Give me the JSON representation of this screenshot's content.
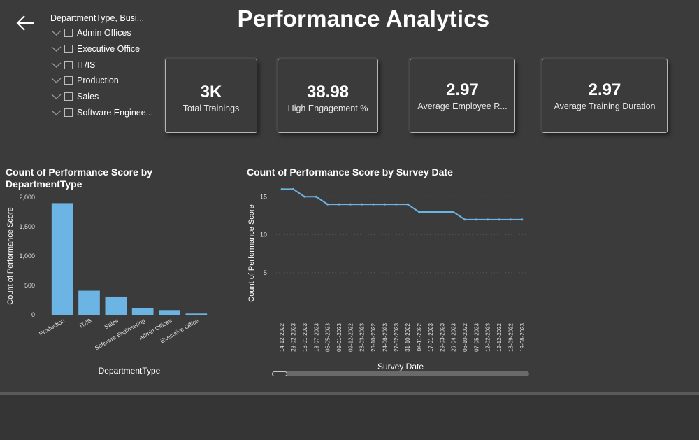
{
  "page": {
    "title": "Performance Analytics"
  },
  "slicer": {
    "title": "DepartmentType, Busi...",
    "items": [
      {
        "label": "Admin Offices"
      },
      {
        "label": "Executive Office"
      },
      {
        "label": "IT/IS"
      },
      {
        "label": "Production"
      },
      {
        "label": "Sales"
      },
      {
        "label": "Software Enginee..."
      }
    ]
  },
  "kpis": [
    {
      "value": "3K",
      "label": "Total Trainings"
    },
    {
      "value": "38.98",
      "label": "High Engagement %"
    },
    {
      "value": "2.97",
      "label": "Average Employee R..."
    },
    {
      "value": "2.97",
      "label": "Average Training Duration"
    }
  ],
  "chart_data": [
    {
      "type": "bar",
      "title": "Count of Performance Score by DepartmentType",
      "xlabel": "DepartmentType",
      "ylabel": "Count of Performance Score",
      "categories": [
        "Production",
        "IT/IS",
        "Sales",
        "Software Engineering",
        "Admin Offices",
        "Executive Office"
      ],
      "values": [
        1900,
        410,
        310,
        110,
        80,
        20
      ],
      "ylim": [
        0,
        2000
      ],
      "yticks": [
        0,
        500,
        1000,
        1500,
        2000
      ],
      "ytick_labels": [
        "0",
        "500",
        "1,000",
        "1,500",
        "2,000"
      ],
      "color": "#6cb4e4",
      "grid": false
    },
    {
      "type": "line",
      "title": "Count of Performance Score by Survey Date",
      "xlabel": "Survey Date",
      "ylabel": "Count of Performance Score",
      "x": [
        "14-12-2022",
        "23-02-2023",
        "13-01-2023",
        "13-07-2023",
        "05-05-2023",
        "09-01-2023",
        "09-12-2022",
        "23-03-2023",
        "23-10-2022",
        "24-06-2023",
        "27-02-2023",
        "31-10-2022",
        "04-11-2022",
        "17-01-2023",
        "29-03-2023",
        "29-04-2023",
        "06-10-2022",
        "07-05-2023",
        "12-02-2023",
        "12-12-2022",
        "18-09-2022",
        "19-08-2023"
      ],
      "values": [
        16,
        16,
        15,
        15,
        14,
        14,
        14,
        14,
        14,
        14,
        14,
        14,
        13,
        13,
        13,
        13,
        12,
        12,
        12,
        12,
        12,
        12
      ],
      "ylim": [
        0,
        16.5
      ],
      "yticks": [
        5,
        10,
        15
      ],
      "ytick_labels": [
        "5",
        "10",
        "15"
      ],
      "color": "#6cb4e4",
      "grid": true
    }
  ],
  "colors": {
    "background": "#3b3b3b",
    "accent": "#6cb4e4"
  },
  "icons": {
    "back": "back-arrow-icon",
    "expand": "chevron-down-icon",
    "checkbox": "checkbox-icon"
  }
}
